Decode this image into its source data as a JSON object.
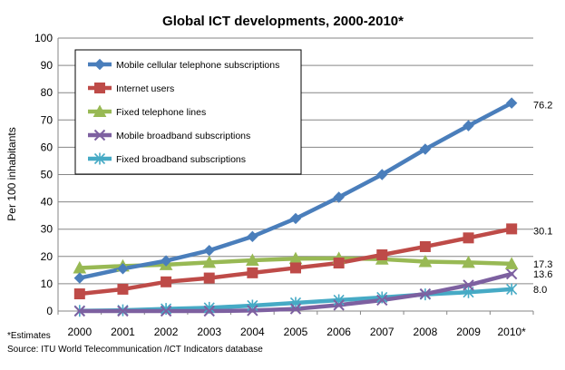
{
  "chart_data": {
    "type": "line",
    "title": "Global ICT developments, 2000-2010*",
    "ylabel": "Per 100 inhabitants",
    "xlabel": "",
    "ylim": [
      0,
      100
    ],
    "y_ticks": [
      0,
      10,
      20,
      30,
      40,
      50,
      60,
      70,
      80,
      90,
      100
    ],
    "x": [
      "2000",
      "2001",
      "2002",
      "2003",
      "2004",
      "2005",
      "2006",
      "2007",
      "2008",
      "2009",
      "2010*"
    ],
    "grid": "horizontal",
    "legend_placement": "top-left",
    "series": [
      {
        "name": "Mobile cellular telephone subscriptions",
        "color": "#4a7ebb",
        "marker": "diamond",
        "values": [
          12.1,
          15.5,
          18.4,
          22.2,
          27.3,
          33.9,
          41.7,
          50.0,
          59.3,
          67.9,
          76.2
        ],
        "end_label": "76.2"
      },
      {
        "name": "Internet users",
        "color": "#be4b48",
        "marker": "square",
        "values": [
          6.3,
          8.0,
          10.7,
          12.1,
          14.0,
          15.8,
          17.6,
          20.6,
          23.6,
          26.8,
          30.1
        ],
        "end_label": "30.1"
      },
      {
        "name": "Fixed telephone lines",
        "color": "#98b954",
        "marker": "triangle",
        "values": [
          15.8,
          16.5,
          17.0,
          17.8,
          18.6,
          19.2,
          19.3,
          19.0,
          18.1,
          17.8,
          17.3
        ],
        "end_label": "17.3"
      },
      {
        "name": "Mobile broadband subscriptions",
        "color": "#7d60a0",
        "marker": "x",
        "values": [
          0,
          0,
          0,
          0,
          0.2,
          0.8,
          2.2,
          4.0,
          6.3,
          9.5,
          13.6
        ],
        "end_label": "13.6"
      },
      {
        "name": "Fixed broadband subscriptions",
        "color": "#46aac5",
        "marker": "star",
        "values": [
          0.1,
          0.3,
          0.8,
          1.2,
          2.0,
          3.0,
          4.0,
          5.0,
          6.1,
          6.9,
          8.0
        ],
        "end_label": "8.0"
      }
    ],
    "footnotes": [
      "*Estimates",
      "Source:  ITU World Telecommunication /ICT Indicators database"
    ]
  }
}
